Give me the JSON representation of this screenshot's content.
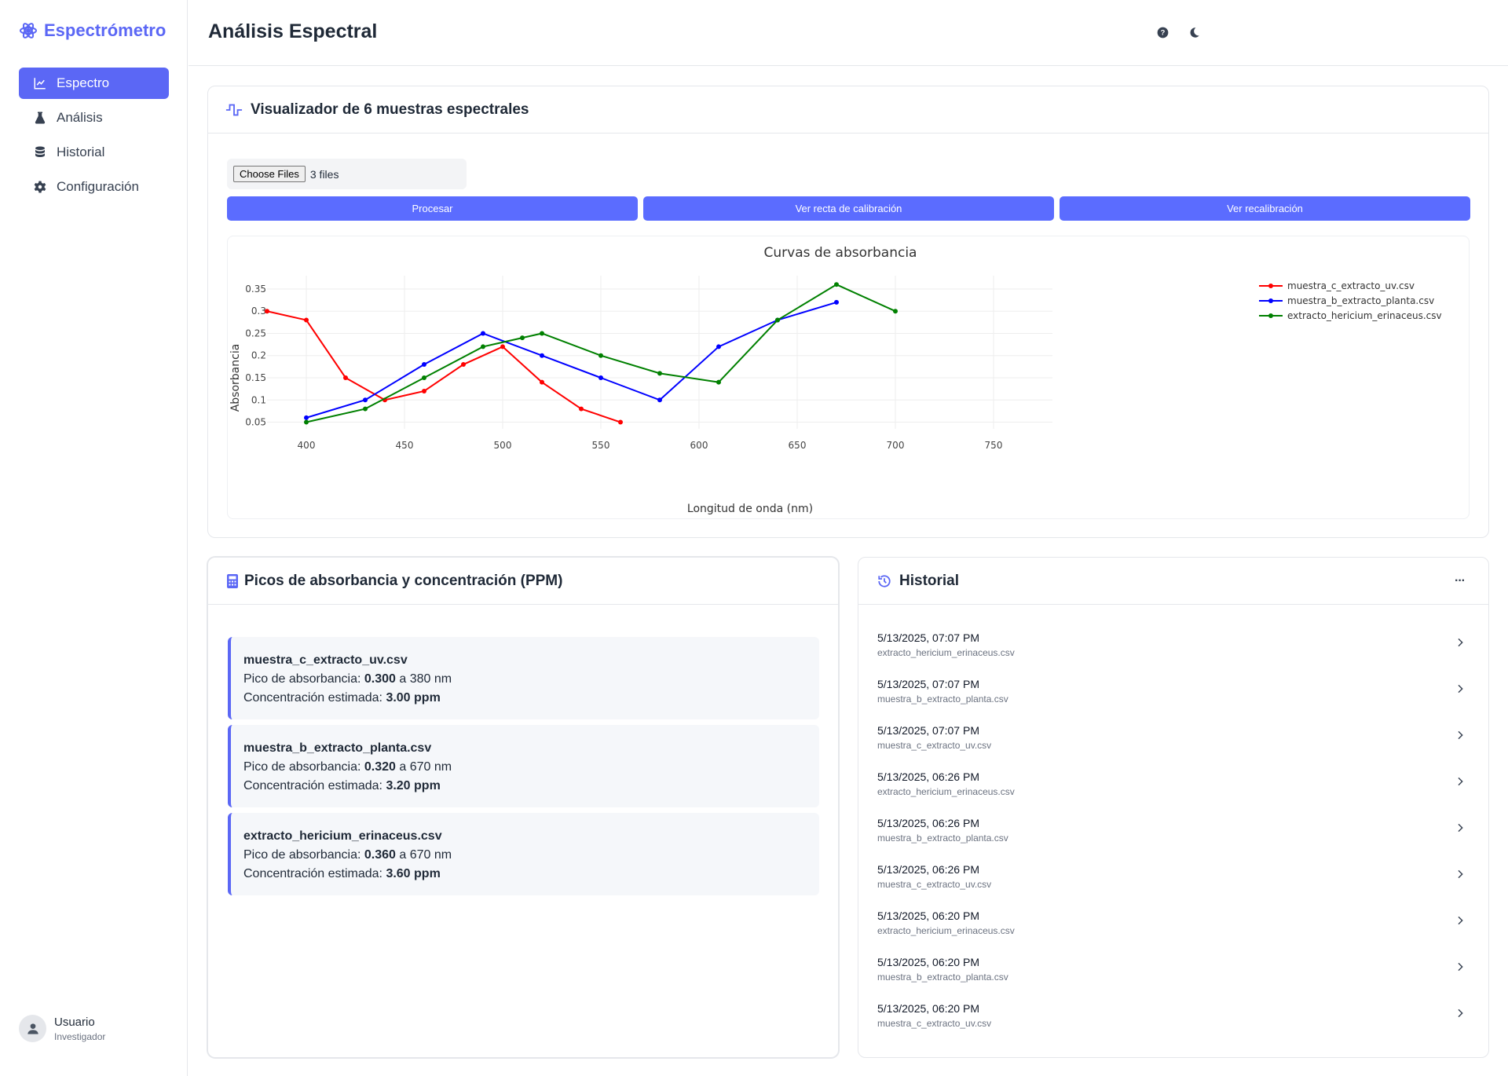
{
  "app": {
    "brand": "Espectrómetro",
    "nav": [
      {
        "label": "Espectro",
        "icon": "line-chart-icon",
        "active": true
      },
      {
        "label": "Análisis",
        "icon": "flask-icon",
        "active": false
      },
      {
        "label": "Historial",
        "icon": "database-icon",
        "active": false
      },
      {
        "label": "Configuración",
        "icon": "gear-icon",
        "active": false
      }
    ],
    "user": {
      "name": "Usuario",
      "role": "Investigador"
    }
  },
  "header": {
    "title": "Análisis Espectral",
    "icons": [
      "help-icon",
      "moon-icon"
    ]
  },
  "visualizer": {
    "title": "Visualizador de 6 muestras espectrales",
    "file_button": "Choose Files",
    "file_status": "3 files",
    "buttons": {
      "process": "Procesar",
      "calibration": "Ver recta de calibración",
      "recalibration": "Ver recalibración"
    },
    "accent": "#5b6cff"
  },
  "chart_data": {
    "type": "line",
    "title": "Curvas de absorbancia",
    "xlabel": "Longitud de onda (nm)",
    "ylabel": "Absorbancia",
    "xlim": [
      380,
      780
    ],
    "ylim": [
      0.035,
      0.38
    ],
    "xticks": [
      400,
      450,
      500,
      550,
      600,
      650,
      700,
      750
    ],
    "yticks": [
      0.05,
      0.1,
      0.15,
      0.2,
      0.25,
      0.3,
      0.35
    ],
    "ytick_labels": [
      "0.05",
      "0.1",
      "0.15",
      "0.2",
      "0.25",
      "0.3",
      "0.35"
    ],
    "grid": true,
    "legend_position": "top-right",
    "series": [
      {
        "name": "muestra_c_extracto_uv.csv",
        "color": "#ff0000",
        "x": [
          380,
          400,
          420,
          440,
          460,
          480,
          500,
          520,
          540,
          560
        ],
        "y": [
          0.3,
          0.28,
          0.15,
          0.1,
          0.12,
          0.18,
          0.22,
          0.14,
          0.08,
          0.05
        ]
      },
      {
        "name": "muestra_b_extracto_planta.csv",
        "color": "#0000ff",
        "x": [
          400,
          430,
          460,
          490,
          520,
          550,
          580,
          610,
          640,
          670
        ],
        "y": [
          0.06,
          0.1,
          0.18,
          0.25,
          0.2,
          0.15,
          0.1,
          0.22,
          0.28,
          0.32
        ]
      },
      {
        "name": "extracto_hericium_erinaceus.csv",
        "color": "#008000",
        "x": [
          400,
          430,
          460,
          490,
          510,
          520,
          550,
          580,
          610,
          640,
          670,
          700
        ],
        "y": [
          0.05,
          0.08,
          0.15,
          0.22,
          0.24,
          0.25,
          0.2,
          0.16,
          0.14,
          0.28,
          0.36,
          0.3
        ]
      }
    ]
  },
  "peaks": {
    "title": "Picos de absorbancia y concentración (PPM)",
    "peak_label": "Pico de absorbancia:",
    "conc_label": "Concentración estimada:",
    "items": [
      {
        "file": "muestra_c_extracto_uv.csv",
        "absorbance": "0.300",
        "wavelength": "a 380 nm",
        "ppm": "3.00 ppm"
      },
      {
        "file": "muestra_b_extracto_planta.csv",
        "absorbance": "0.320",
        "wavelength": "a 670 nm",
        "ppm": "3.20 ppm"
      },
      {
        "file": "extracto_hericium_erinaceus.csv",
        "absorbance": "0.360",
        "wavelength": "a 670 nm",
        "ppm": "3.60 ppm"
      }
    ]
  },
  "history": {
    "title": "Historial",
    "more": "···",
    "items": [
      {
        "date": "5/13/2025, 07:07 PM",
        "file": "extracto_hericium_erinaceus.csv"
      },
      {
        "date": "5/13/2025, 07:07 PM",
        "file": "muestra_b_extracto_planta.csv"
      },
      {
        "date": "5/13/2025, 07:07 PM",
        "file": "muestra_c_extracto_uv.csv"
      },
      {
        "date": "5/13/2025, 06:26 PM",
        "file": "extracto_hericium_erinaceus.csv"
      },
      {
        "date": "5/13/2025, 06:26 PM",
        "file": "muestra_b_extracto_planta.csv"
      },
      {
        "date": "5/13/2025, 06:26 PM",
        "file": "muestra_c_extracto_uv.csv"
      },
      {
        "date": "5/13/2025, 06:20 PM",
        "file": "extracto_hericium_erinaceus.csv"
      },
      {
        "date": "5/13/2025, 06:20 PM",
        "file": "muestra_b_extracto_planta.csv"
      },
      {
        "date": "5/13/2025, 06:20 PM",
        "file": "muestra_c_extracto_uv.csv"
      }
    ]
  }
}
